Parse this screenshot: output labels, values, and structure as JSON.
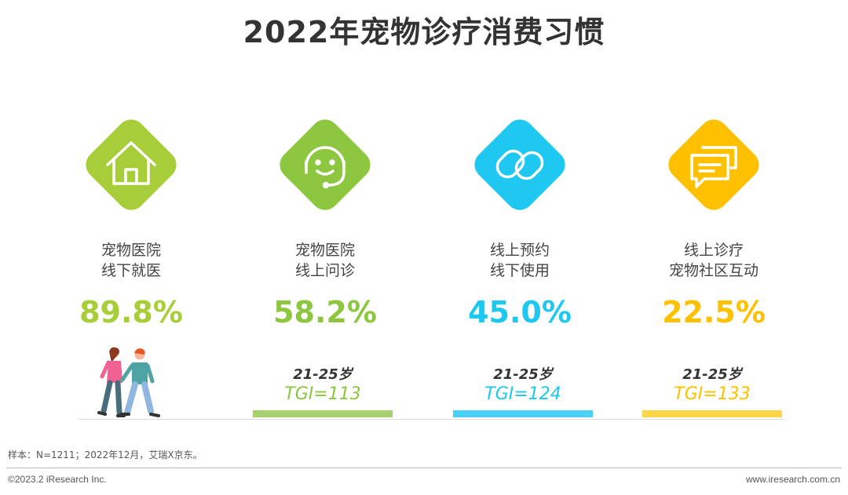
{
  "title": "2022年宠物诊疗消费习惯",
  "chart_data": {
    "type": "table",
    "items": [
      {
        "label_line1": "宠物医院",
        "label_line2": "线下就医",
        "value": 89.8,
        "value_text": "89.8%",
        "color": "#A7CE38",
        "icon": "house-icon",
        "age": "",
        "tgi": ""
      },
      {
        "label_line1": "宠物医院",
        "label_line2": "线上问诊",
        "value": 58.2,
        "value_text": "58.2%",
        "color": "#8DC63F",
        "icon": "headset-smile-icon",
        "age": "21-25岁",
        "tgi": "TGI=113"
      },
      {
        "label_line1": "线上预约",
        "label_line2": "线下使用",
        "value": 45.0,
        "value_text": "45.0%",
        "color": "#1EC8F0",
        "icon": "link-icon",
        "age": "21-25岁",
        "tgi": "TGI=124"
      },
      {
        "label_line1": "线上诊疗",
        "label_line2": "宠物社区互动",
        "value": 22.5,
        "value_text": "22.5%",
        "color": "#FFC000",
        "icon": "chat-bubbles-icon",
        "age": "21-25岁",
        "tgi": "TGI=133"
      }
    ]
  },
  "colors": {
    "green_light": "#A7CE38",
    "green": "#8DC63F",
    "cyan": "#1EC8F0",
    "yellow": "#FFC000",
    "bar_green": "#A9D06E",
    "bar_cyan": "#49D0F2",
    "bar_yellow": "#FFD54A",
    "tgi_green": "#8DC63F",
    "tgi_cyan": "#1EC8F0",
    "tgi_yellow": "#FFC000"
  },
  "footer": {
    "sample": "样本：N=1211；2022年12月，艾瑞X京东。",
    "copyright": "©2023.2 iResearch Inc.",
    "website": "www.iresearch.com.cn"
  }
}
